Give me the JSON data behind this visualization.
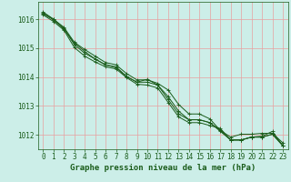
{
  "xlabel": "Graphe pression niveau de la mer (hPa)",
  "bg_color": "#cceee8",
  "grid_color": "#e8a0a0",
  "line_color": "#1a5c1a",
  "x_values": [
    0,
    1,
    2,
    3,
    4,
    5,
    6,
    7,
    8,
    9,
    10,
    11,
    12,
    13,
    14,
    15,
    16,
    17,
    18,
    19,
    20,
    21,
    22,
    23
  ],
  "series": [
    [
      1016.25,
      1016.0,
      1015.72,
      1015.2,
      1014.95,
      1014.72,
      1014.5,
      1014.42,
      1014.12,
      1013.9,
      1013.9,
      1013.78,
      1013.55,
      1013.05,
      1012.72,
      1012.72,
      1012.55,
      1012.15,
      1011.92,
      1012.02,
      1012.02,
      1012.05,
      1012.05,
      1011.72
    ],
    [
      1016.22,
      1016.0,
      1015.68,
      1015.12,
      1014.82,
      1014.62,
      1014.42,
      1014.35,
      1014.02,
      1013.82,
      1013.82,
      1013.72,
      1013.32,
      1012.82,
      1012.52,
      1012.52,
      1012.42,
      1012.15,
      1011.82,
      1011.82,
      1011.92,
      1011.95,
      1012.12,
      1011.62
    ],
    [
      1016.15,
      1015.92,
      1015.62,
      1015.02,
      1014.72,
      1014.52,
      1014.35,
      1014.28,
      1013.98,
      1013.75,
      1013.72,
      1013.62,
      1013.12,
      1012.62,
      1012.42,
      1012.42,
      1012.32,
      1012.22,
      1011.82,
      1011.82,
      1011.92,
      1011.92,
      1012.02,
      1011.62
    ],
    [
      1016.18,
      1015.98,
      1015.65,
      1015.18,
      1014.88,
      1014.62,
      1014.42,
      1014.32,
      1014.02,
      1013.82,
      1013.92,
      1013.72,
      1013.22,
      1012.72,
      1012.52,
      1012.52,
      1012.42,
      1012.12,
      1011.82,
      1011.82,
      1011.92,
      1011.92,
      1012.02,
      1011.62
    ]
  ],
  "ylim": [
    1011.5,
    1016.6
  ],
  "yticks": [
    1012,
    1013,
    1014,
    1015,
    1016
  ],
  "xticks": [
    0,
    1,
    2,
    3,
    4,
    5,
    6,
    7,
    8,
    9,
    10,
    11,
    12,
    13,
    14,
    15,
    16,
    17,
    18,
    19,
    20,
    21,
    22,
    23
  ],
  "tick_fontsize": 5.5,
  "label_fontsize": 6.5,
  "linewidth": 0.7,
  "markersize": 2.5
}
